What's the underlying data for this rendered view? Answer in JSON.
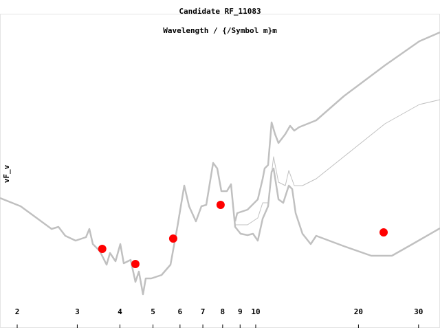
{
  "chart_data": {
    "type": "line",
    "title": "Candidate RF_11083",
    "subtitle": "Wavelength / {/Symbol m}m",
    "y_label": "vF_v",
    "log_x": true,
    "xlim": [
      1.781,
      34.67
    ],
    "ylim": [
      0,
      457
    ],
    "xticks": [
      2,
      3,
      4,
      5,
      6,
      7,
      8,
      9,
      10,
      20,
      30
    ],
    "series": [
      {
        "style": "line",
        "color": "#c0c0c0",
        "width": 2.5,
        "x": [
          1.781,
          2.047,
          2.353,
          2.522,
          2.642,
          2.767,
          2.966,
          3.181,
          3.255,
          3.332,
          3.49,
          3.656,
          3.741,
          3.883,
          4.011,
          4.105,
          4.3,
          4.441,
          4.546,
          4.674,
          4.761,
          4.942,
          5.298,
          5.627,
          5.894,
          6.174,
          6.378,
          6.68,
          6.933,
          7.162,
          7.502,
          7.713,
          7.931,
          8.231,
          8.464,
          8.702,
          9.031,
          9.46,
          9.818,
          10.14,
          10.48,
          10.87,
          11.13,
          11.28,
          11.66,
          12.04,
          12.5,
          12.79,
          13.09,
          13.71,
          14.49,
          15.04,
          18.11,
          21.8,
          25.06,
          28.8,
          34.67
        ],
        "values": [
          189,
          177,
          155,
          144,
          147,
          134,
          127,
          132,
          144,
          122,
          112,
          92,
          109,
          97,
          122,
          94,
          99,
          67,
          82,
          49,
          72,
          72,
          77,
          92,
          147,
          207,
          177,
          155,
          177,
          179,
          240,
          232,
          199,
          199,
          209,
          147,
          137,
          135,
          137,
          127,
          159,
          177,
          227,
          232,
          187,
          182,
          207,
          202,
          167,
          137,
          122,
          134,
          119,
          105,
          105,
          122,
          145
        ]
      },
      {
        "style": "line",
        "color": "#c0c0c0",
        "width": 2.5,
        "x": [
          8.702,
          8.824,
          9.46,
          10.14,
          10.48,
          10.62,
          10.87,
          11.13,
          11.39,
          11.66,
          12.21,
          12.61,
          12.97,
          13.4,
          15.04,
          18.11,
          23.92,
          30.16,
          34.67
        ],
        "values": [
          155,
          167,
          172,
          187,
          217,
          232,
          237,
          299,
          282,
          269,
          282,
          294,
          287,
          292,
          302,
          337,
          382,
          417,
          430
        ]
      },
      {
        "style": "line",
        "color": "#c0c0c0",
        "width": 1,
        "x": [
          8.702,
          9.46,
          10.14,
          10.48,
          10.87,
          11.28,
          11.66,
          12.21,
          12.5,
          12.97,
          13.71,
          15.04,
          18.11,
          23.92,
          30.16,
          34.67
        ],
        "values": [
          150,
          150,
          160,
          182,
          182,
          249,
          212,
          207,
          229,
          207,
          207,
          217,
          249,
          297,
          325,
          332
        ]
      },
      {
        "style": "marker",
        "color": "#ff0000",
        "width": 6,
        "x": [
          3.55,
          4.44,
          5.73,
          7.89,
          23.7
        ],
        "values": [
          115,
          93,
          130,
          179,
          139
        ]
      }
    ]
  }
}
